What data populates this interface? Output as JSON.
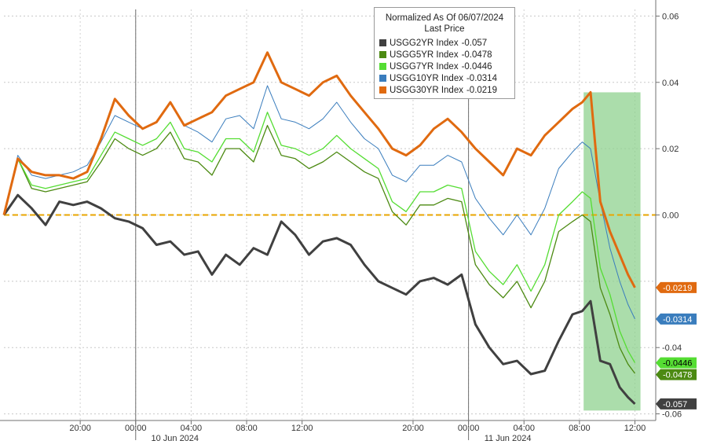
{
  "chart_data": {
    "type": "line",
    "legend": {
      "title": "Normalized As Of 06/07/2024",
      "subtitle": "Last Price",
      "placement": "top-center"
    },
    "y_axis": {
      "side": "right",
      "ylim": [
        -0.062,
        0.062
      ],
      "ticks": [
        0.06,
        0.04,
        0.02,
        0.0,
        -0.04,
        -0.06
      ],
      "tick_labels": [
        "0.06",
        "0.04",
        "0.02",
        "0.00",
        "-0.04",
        "-0.06"
      ]
    },
    "x_axis": {
      "time_ticks": [
        "20:00",
        "00:00",
        "04:00",
        "08:00",
        "12:00",
        "20:00",
        "00:00",
        "04:00",
        "08:00",
        "12:00"
      ],
      "date_labels": [
        "10 Jun 2024",
        "11 Jun 2024"
      ],
      "tick_hours": [
        -4,
        0,
        4,
        8,
        12,
        20,
        24,
        28,
        32,
        36
      ],
      "xlim_hours": [
        -9.5,
        37.5
      ]
    },
    "grid": true,
    "zero_line_color": "#e8a600",
    "highlight_region_hours": [
      32.3,
      36.4
    ],
    "highlight_color": "#8fd18f",
    "x_hours": [
      -9.5,
      -8.5,
      -7.5,
      -6.5,
      -5.5,
      -4.5,
      -3.5,
      -2.5,
      -1.5,
      -0.5,
      0.5,
      1.5,
      2.5,
      3.5,
      4.5,
      5.5,
      6.5,
      7.5,
      8.5,
      9.5,
      10.5,
      11.5,
      12.5,
      13.5,
      14.5,
      15.5,
      16.5,
      17.5,
      18.5,
      19.5,
      20.5,
      21.5,
      22.5,
      23.5,
      24.5,
      25.5,
      26.5,
      27.5,
      28.5,
      29.5,
      30.5,
      31.5,
      32.2,
      32.8,
      33.5,
      34.2,
      34.9,
      35.5,
      36.0
    ],
    "series": [
      {
        "name": "USGG2YR Index",
        "last": "-0.057",
        "color": "#404040",
        "values": [
          0.0,
          0.006,
          0.002,
          -0.003,
          0.004,
          0.003,
          0.004,
          0.002,
          -0.001,
          -0.002,
          -0.004,
          -0.009,
          -0.008,
          -0.012,
          -0.011,
          -0.018,
          -0.012,
          -0.015,
          -0.01,
          -0.012,
          -0.002,
          -0.006,
          -0.012,
          -0.008,
          -0.007,
          -0.009,
          -0.015,
          -0.02,
          -0.022,
          -0.024,
          -0.02,
          -0.019,
          -0.021,
          -0.018,
          -0.033,
          -0.04,
          -0.045,
          -0.044,
          -0.048,
          -0.047,
          -0.038,
          -0.03,
          -0.029,
          -0.026,
          -0.044,
          -0.045,
          -0.052,
          -0.055,
          -0.057
        ]
      },
      {
        "name": "USGG5YR Index",
        "last": "-0.0478",
        "color": "#4c8a12",
        "values": [
          0.0,
          0.017,
          0.008,
          0.007,
          0.008,
          0.009,
          0.01,
          0.016,
          0.023,
          0.02,
          0.018,
          0.02,
          0.025,
          0.017,
          0.016,
          0.012,
          0.02,
          0.02,
          0.016,
          0.027,
          0.018,
          0.017,
          0.014,
          0.016,
          0.019,
          0.016,
          0.013,
          0.011,
          0.001,
          -0.003,
          0.003,
          0.003,
          0.005,
          0.004,
          -0.015,
          -0.021,
          -0.025,
          -0.02,
          -0.028,
          -0.02,
          -0.005,
          -0.002,
          0.0,
          -0.002,
          -0.022,
          -0.03,
          -0.04,
          -0.045,
          -0.0478
        ]
      },
      {
        "name": "USGG7YR Index",
        "last": "-0.0446",
        "color": "#55dd33",
        "values": [
          0.0,
          0.017,
          0.009,
          0.008,
          0.009,
          0.01,
          0.011,
          0.018,
          0.025,
          0.023,
          0.021,
          0.023,
          0.028,
          0.02,
          0.019,
          0.016,
          0.023,
          0.023,
          0.019,
          0.031,
          0.021,
          0.02,
          0.018,
          0.02,
          0.024,
          0.02,
          0.017,
          0.014,
          0.004,
          0.001,
          0.007,
          0.007,
          0.009,
          0.008,
          -0.011,
          -0.017,
          -0.021,
          -0.015,
          -0.023,
          -0.015,
          0.0,
          0.004,
          0.007,
          0.005,
          -0.016,
          -0.024,
          -0.035,
          -0.041,
          -0.0446
        ]
      },
      {
        "name": "USGG10YR Index",
        "last": "-0.0314",
        "color": "#3a7dbd",
        "values": [
          0.0,
          0.018,
          0.012,
          0.011,
          0.012,
          0.013,
          0.015,
          0.022,
          0.03,
          0.028,
          0.026,
          0.028,
          0.034,
          0.027,
          0.025,
          0.022,
          0.029,
          0.03,
          0.026,
          0.039,
          0.029,
          0.028,
          0.026,
          0.029,
          0.034,
          0.028,
          0.023,
          0.02,
          0.012,
          0.01,
          0.015,
          0.015,
          0.018,
          0.016,
          0.005,
          -0.001,
          -0.006,
          0.0,
          -0.006,
          0.002,
          0.014,
          0.019,
          0.022,
          0.02,
          0.004,
          -0.01,
          -0.02,
          -0.027,
          -0.0314
        ]
      },
      {
        "name": "USGG30YR Index",
        "last": "-0.0219",
        "color": "#e06a10",
        "values": [
          0.0,
          0.017,
          0.013,
          0.012,
          0.012,
          0.011,
          0.013,
          0.023,
          0.035,
          0.03,
          0.026,
          0.028,
          0.034,
          0.027,
          0.029,
          0.031,
          0.036,
          0.038,
          0.04,
          0.049,
          0.04,
          0.038,
          0.036,
          0.04,
          0.042,
          0.036,
          0.031,
          0.026,
          0.02,
          0.018,
          0.021,
          0.026,
          0.029,
          0.025,
          0.02,
          0.016,
          0.012,
          0.02,
          0.018,
          0.024,
          0.028,
          0.032,
          0.034,
          0.037,
          0.004,
          -0.005,
          -0.012,
          -0.018,
          -0.0219
        ]
      }
    ]
  }
}
